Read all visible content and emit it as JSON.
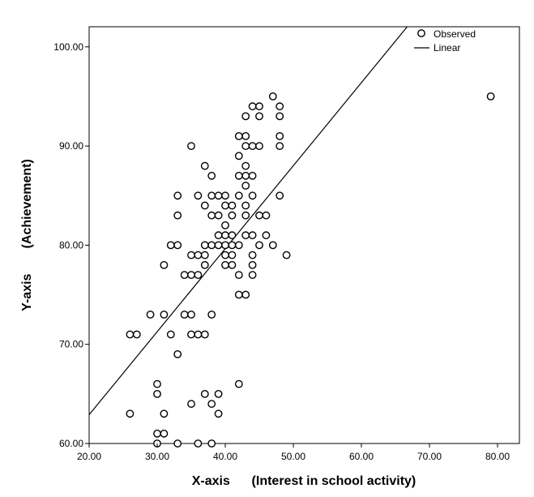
{
  "chart_data": {
    "type": "scatter",
    "xlabel": "X-axis      (Interest in school activity)",
    "ylabel": "Y-axis       (Achievement)",
    "xlim": [
      20,
      80
    ],
    "ylim": [
      60,
      102
    ],
    "x_ticks": [
      "20.00",
      "30.00",
      "40.00",
      "50.00",
      "60.00",
      "70.00",
      "80.00"
    ],
    "y_ticks": [
      "60.00",
      "70.00",
      "80.00",
      "90.00",
      "100.00"
    ],
    "x_tick_values": [
      20,
      30,
      40,
      50,
      60,
      70,
      80
    ],
    "y_tick_values": [
      60,
      70,
      80,
      90,
      100
    ],
    "grid": false,
    "legend_position": "top-right",
    "legend": [
      "Observed",
      "Linear"
    ],
    "series": [
      {
        "name": "Observed",
        "type": "scatter",
        "points": [
          [
            26,
            63
          ],
          [
            26,
            71
          ],
          [
            27,
            71
          ],
          [
            29,
            73
          ],
          [
            30,
            66
          ],
          [
            30,
            65
          ],
          [
            30,
            61
          ],
          [
            30,
            60
          ],
          [
            31,
            78
          ],
          [
            31,
            73
          ],
          [
            31,
            63
          ],
          [
            31,
            61
          ],
          [
            32,
            80
          ],
          [
            32,
            71
          ],
          [
            33,
            85
          ],
          [
            33,
            83
          ],
          [
            33,
            80
          ],
          [
            33,
            69
          ],
          [
            33,
            60
          ],
          [
            34,
            77
          ],
          [
            34,
            73
          ],
          [
            35,
            90
          ],
          [
            35,
            79
          ],
          [
            35,
            77
          ],
          [
            35,
            73
          ],
          [
            35,
            71
          ],
          [
            35,
            64
          ],
          [
            36,
            85
          ],
          [
            36,
            79
          ],
          [
            36,
            77
          ],
          [
            36,
            71
          ],
          [
            36,
            60
          ],
          [
            37,
            88
          ],
          [
            37,
            84
          ],
          [
            37,
            80
          ],
          [
            37,
            79
          ],
          [
            37,
            78
          ],
          [
            37,
            71
          ],
          [
            37,
            65
          ],
          [
            38,
            87
          ],
          [
            38,
            85
          ],
          [
            38,
            83
          ],
          [
            38,
            80
          ],
          [
            38,
            73
          ],
          [
            38,
            64
          ],
          [
            38,
            60
          ],
          [
            39,
            85
          ],
          [
            39,
            83
          ],
          [
            39,
            81
          ],
          [
            39,
            80
          ],
          [
            39,
            65
          ],
          [
            39,
            63
          ],
          [
            40,
            85
          ],
          [
            40,
            84
          ],
          [
            40,
            82
          ],
          [
            40,
            81
          ],
          [
            40,
            80
          ],
          [
            40,
            79
          ],
          [
            40,
            78
          ],
          [
            41,
            84
          ],
          [
            41,
            83
          ],
          [
            41,
            81
          ],
          [
            41,
            80
          ],
          [
            41,
            79
          ],
          [
            41,
            78
          ],
          [
            42,
            91
          ],
          [
            42,
            89
          ],
          [
            42,
            87
          ],
          [
            42,
            85
          ],
          [
            42,
            80
          ],
          [
            42,
            77
          ],
          [
            42,
            75
          ],
          [
            42,
            66
          ],
          [
            43,
            93
          ],
          [
            43,
            91
          ],
          [
            43,
            90
          ],
          [
            43,
            88
          ],
          [
            43,
            87
          ],
          [
            43,
            86
          ],
          [
            43,
            84
          ],
          [
            43,
            83
          ],
          [
            43,
            81
          ],
          [
            43,
            75
          ],
          [
            44,
            94
          ],
          [
            44,
            90
          ],
          [
            44,
            87
          ],
          [
            44,
            85
          ],
          [
            44,
            81
          ],
          [
            44,
            79
          ],
          [
            44,
            78
          ],
          [
            44,
            77
          ],
          [
            45,
            94
          ],
          [
            45,
            93
          ],
          [
            45,
            90
          ],
          [
            45,
            83
          ],
          [
            45,
            80
          ],
          [
            46,
            83
          ],
          [
            46,
            81
          ],
          [
            47,
            95
          ],
          [
            47,
            80
          ],
          [
            48,
            94
          ],
          [
            48,
            93
          ],
          [
            48,
            91
          ],
          [
            48,
            90
          ],
          [
            48,
            85
          ],
          [
            49,
            79
          ],
          [
            79,
            95
          ]
        ]
      },
      {
        "name": "Linear",
        "type": "line",
        "points": [
          [
            20,
            62.9
          ],
          [
            66.7,
            102
          ]
        ]
      }
    ]
  }
}
